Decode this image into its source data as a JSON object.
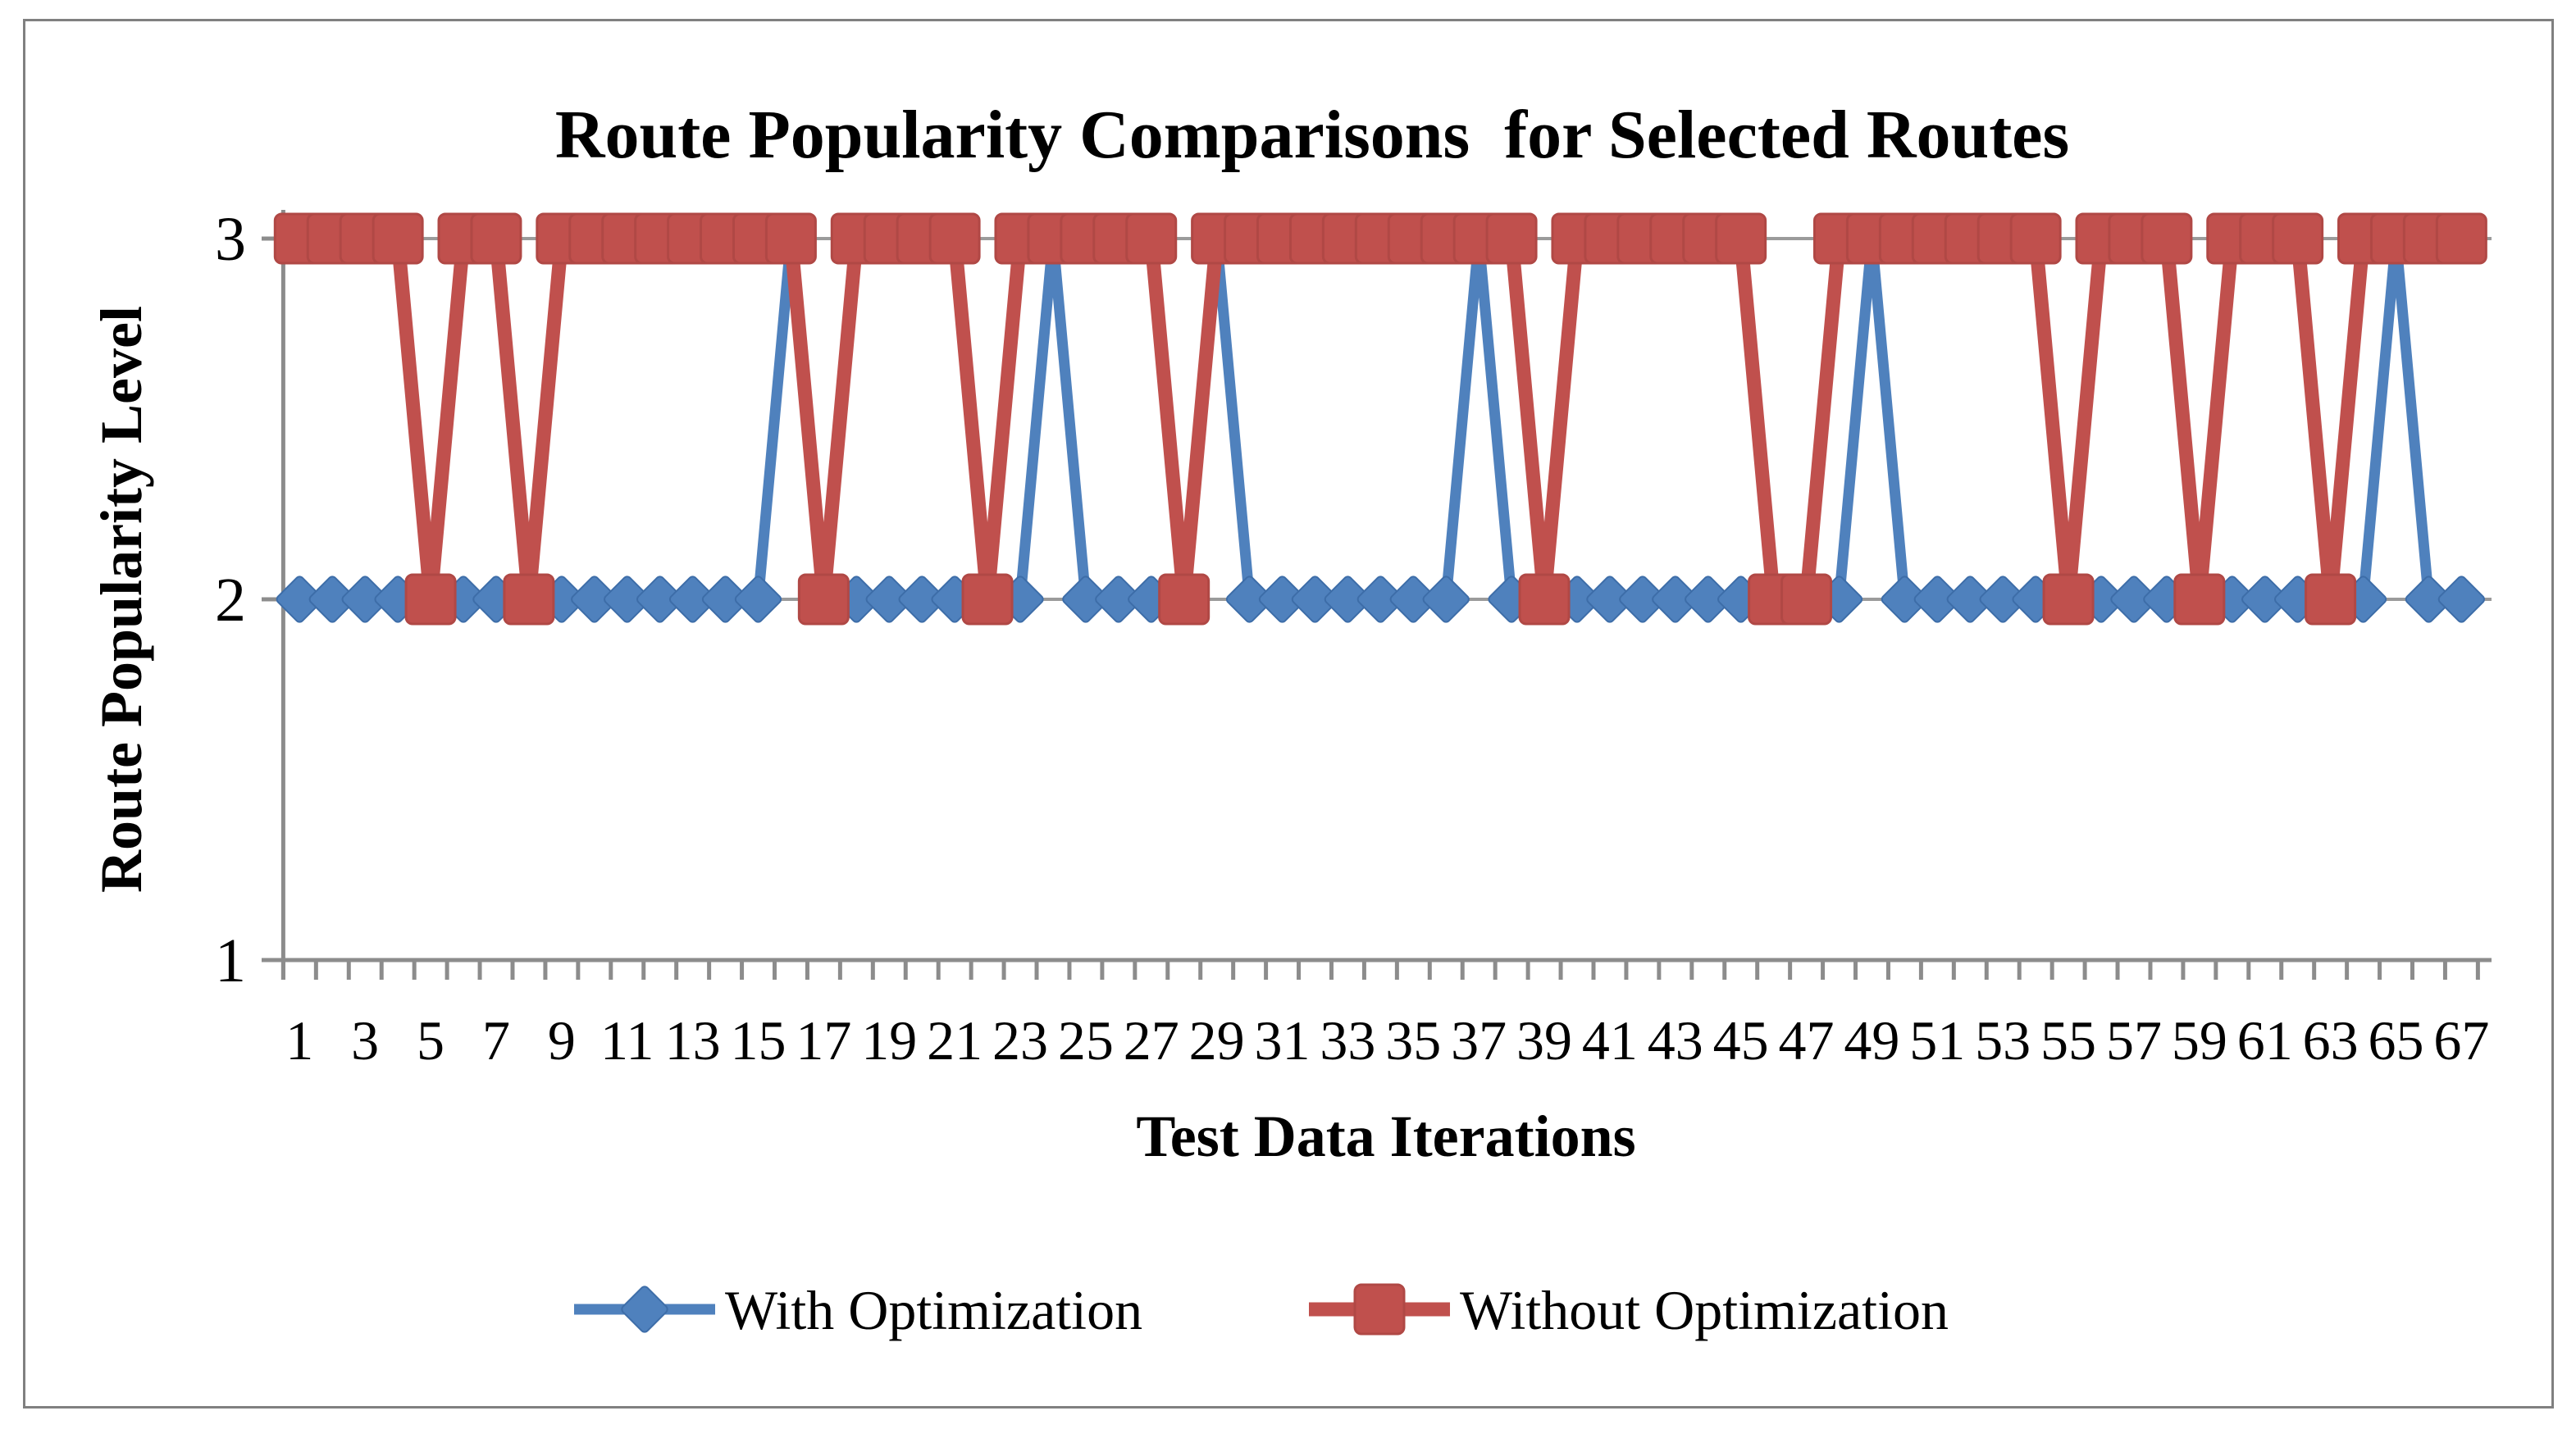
{
  "figure": {
    "border_color": "#808080",
    "background": "#ffffff"
  },
  "colors": {
    "with_optimization": "#4F81BD",
    "with_optimization_edge": "#3D6DA8",
    "without_optimization": "#C0504D",
    "without_optimization_edge": "#B04845",
    "grid": "#9B9B9B",
    "axis": "#8C8C8C",
    "text": "#000000"
  },
  "chart_data": {
    "type": "line",
    "title": "Route Popularity Comparisons  for Selected Routes",
    "xlabel": "Test Data Iterations",
    "ylabel": "Route Popularity Level",
    "x": [
      1,
      2,
      3,
      4,
      5,
      6,
      7,
      8,
      9,
      10,
      11,
      12,
      13,
      14,
      15,
      16,
      17,
      18,
      19,
      20,
      21,
      22,
      23,
      24,
      25,
      26,
      27,
      28,
      29,
      30,
      31,
      32,
      33,
      34,
      35,
      36,
      37,
      38,
      39,
      40,
      41,
      42,
      43,
      44,
      45,
      46,
      47,
      48,
      49,
      50,
      51,
      52,
      53,
      54,
      55,
      56,
      57,
      58,
      59,
      60,
      61,
      62,
      63,
      64,
      65,
      66,
      67
    ],
    "x_tick_label_step": 2,
    "y_ticks": [
      1,
      2,
      3
    ],
    "ylim": [
      1,
      3
    ],
    "grid": "horizontal",
    "legend_position": "bottom",
    "series": [
      {
        "name": "With Optimization",
        "marker": "diamond",
        "color": "#4F81BD",
        "values": [
          2,
          2,
          2,
          2,
          2,
          2,
          2,
          2,
          2,
          2,
          2,
          2,
          2,
          2,
          2,
          3,
          2,
          2,
          2,
          2,
          2,
          2,
          2,
          3,
          2,
          2,
          2,
          2,
          3,
          2,
          2,
          2,
          2,
          2,
          2,
          2,
          3,
          2,
          2,
          2,
          2,
          2,
          2,
          2,
          2,
          2,
          2,
          2,
          3,
          2,
          2,
          2,
          2,
          2,
          2,
          2,
          2,
          2,
          2,
          2,
          2,
          2,
          2,
          2,
          3,
          2,
          2
        ]
      },
      {
        "name": "Without Optimization",
        "marker": "square",
        "color": "#C0504D",
        "values": [
          3,
          3,
          3,
          3,
          2,
          3,
          3,
          2,
          3,
          3,
          3,
          3,
          3,
          3,
          3,
          3,
          2,
          3,
          3,
          3,
          3,
          2,
          3,
          3,
          3,
          3,
          3,
          2,
          3,
          3,
          3,
          3,
          3,
          3,
          3,
          3,
          3,
          3,
          2,
          3,
          3,
          3,
          3,
          3,
          3,
          2,
          2,
          3,
          3,
          3,
          3,
          3,
          3,
          3,
          2,
          3,
          3,
          3,
          2,
          3,
          3,
          3,
          2,
          3,
          3,
          3,
          3
        ]
      }
    ]
  }
}
